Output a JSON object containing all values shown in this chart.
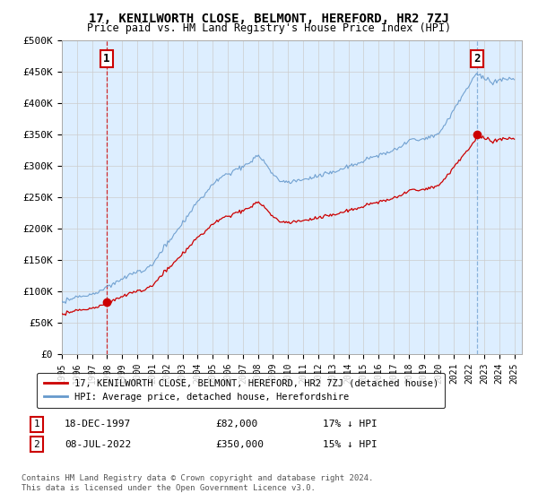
{
  "title": "17, KENILWORTH CLOSE, BELMONT, HEREFORD, HR2 7ZJ",
  "subtitle": "Price paid vs. HM Land Registry's House Price Index (HPI)",
  "ylabel_ticks": [
    "£0",
    "£50K",
    "£100K",
    "£150K",
    "£200K",
    "£250K",
    "£300K",
    "£350K",
    "£400K",
    "£450K",
    "£500K"
  ],
  "ylim": [
    0,
    500000
  ],
  "xlim_start": 1995.0,
  "xlim_end": 2025.5,
  "sale1": {
    "date_num": 1997.96,
    "price": 82000,
    "label": "1",
    "date_str": "18-DEC-1997",
    "price_str": "£82,000",
    "pct": "17% ↓ HPI"
  },
  "sale2": {
    "date_num": 2022.52,
    "price": 350000,
    "label": "2",
    "date_str": "08-JUL-2022",
    "price_str": "£350,000",
    "pct": "15% ↓ HPI"
  },
  "legend_entry1": "17, KENILWORTH CLOSE, BELMONT, HEREFORD, HR2 7ZJ (detached house)",
  "legend_entry2": "HPI: Average price, detached house, Herefordshire",
  "footer": "Contains HM Land Registry data © Crown copyright and database right 2024.\nThis data is licensed under the Open Government Licence v3.0.",
  "sale_color": "#cc0000",
  "hpi_color": "#6699cc",
  "vline1_color": "#cc0000",
  "vline2_color": "#6699cc",
  "grid_color": "#cccccc",
  "plot_bg": "#ddeeff"
}
